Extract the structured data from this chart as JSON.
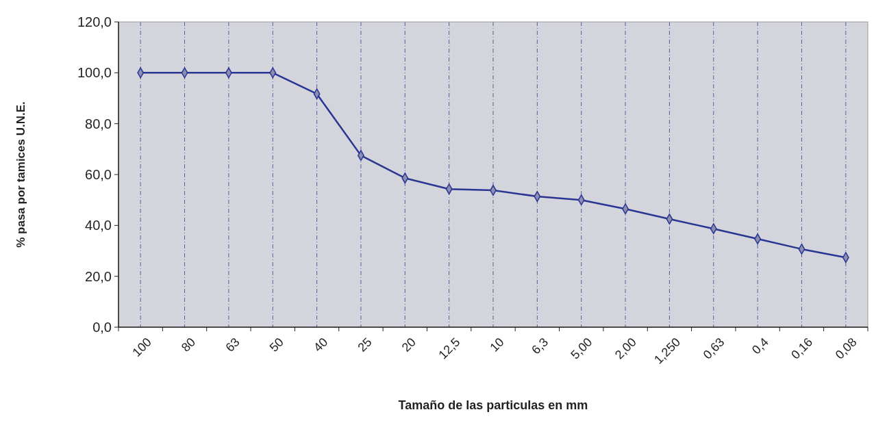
{
  "chart_data": {
    "type": "line",
    "xlabel": "Tamaño de las particulas en mm",
    "ylabel": "% pasa por tamices U.N.E.",
    "categories": [
      "100",
      "80",
      "63",
      "50",
      "40",
      "25",
      "20",
      "12,5",
      "10",
      "6,3",
      "5,00",
      "2,00",
      "1,250",
      "0,63",
      "0,4",
      "0,16",
      "0,08"
    ],
    "series": [
      {
        "color": "#283593",
        "values": [
          100,
          100,
          100,
          100,
          91.7,
          67.5,
          58.6,
          54.3,
          53.8,
          51.4,
          50.0,
          46.5,
          42.5,
          38.7,
          34.7,
          30.7,
          27.4
        ]
      }
    ],
    "ylim": [
      0,
      120
    ],
    "yticks": [
      {
        "value": 0,
        "label": "0,0"
      },
      {
        "value": 20,
        "label": "20,0"
      },
      {
        "value": 40,
        "label": "40,0"
      },
      {
        "value": 60,
        "label": "60,0"
      },
      {
        "value": 80,
        "label": "80,0"
      },
      {
        "value": 100,
        "label": "100,0"
      },
      {
        "value": 120,
        "label": "120,0"
      }
    ],
    "grid": "x",
    "marker": "diamond",
    "line_style": "solid"
  }
}
